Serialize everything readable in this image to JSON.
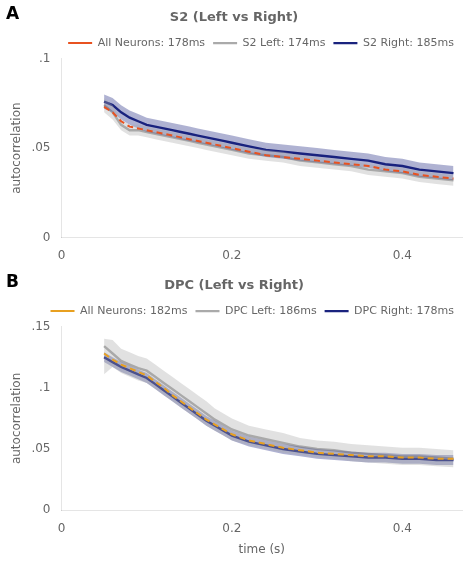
{
  "chart_data": [
    {
      "type": "line",
      "title": "S2 (Left vs Right)",
      "annotations": [
        {
          "text": "A"
        }
      ],
      "y_label": "autocorrelation",
      "xlim": [
        0,
        0.47
      ],
      "xticks": [
        0,
        {
          "value": 0.1,
          "label": ""
        },
        {
          "value": 0.2,
          "label": "0.2"
        },
        {
          "value": 0.3,
          "label": ""
        },
        {
          "value": 0.4,
          "label": "0.4"
        }
      ],
      "ylim": [
        0,
        0.1
      ],
      "yticks": [
        0,
        {
          "value": 0.05,
          "label": ".05"
        },
        {
          "value": 0.1,
          "label": ".1"
        }
      ],
      "grid": false,
      "legend": "upper right",
      "x": [
        0.05,
        0.06,
        0.07,
        0.08,
        0.09,
        0.1,
        0.11,
        0.12,
        0.13,
        0.14,
        0.15,
        0.16,
        0.17,
        0.18,
        0.19,
        0.2,
        0.22,
        0.24,
        0.26,
        0.28,
        0.3,
        0.32,
        0.34,
        0.36,
        0.38,
        0.4,
        0.42,
        0.44,
        0.46
      ],
      "series": [
        {
          "name": "All Neurons: 178ms",
          "color": "#E85220",
          "line_style": "dashed",
          "values": [
            0.073,
            0.07,
            0.065,
            0.062,
            0.061,
            0.06,
            0.059,
            0.058,
            0.057,
            0.056,
            0.055,
            0.054,
            0.053,
            0.052,
            0.051,
            0.05,
            0.048,
            0.046,
            0.045,
            0.044,
            0.043,
            0.042,
            0.041,
            0.04,
            0.038,
            0.037,
            0.035,
            0.034,
            0.033
          ]
        },
        {
          "name": "S2 Left: 174ms",
          "color": "#AAAAAA",
          "line_style": "solid",
          "values": [
            0.074,
            0.07,
            0.063,
            0.06,
            0.06,
            0.059,
            0.058,
            0.057,
            0.056,
            0.055,
            0.054,
            0.053,
            0.052,
            0.051,
            0.05,
            0.049,
            0.047,
            0.046,
            0.045,
            0.043,
            0.042,
            0.041,
            0.04,
            0.038,
            0.037,
            0.036,
            0.034,
            0.033,
            0.032
          ],
          "lo": [
            0.07,
            0.066,
            0.06,
            0.057,
            0.057,
            0.056,
            0.055,
            0.054,
            0.053,
            0.052,
            0.051,
            0.05,
            0.049,
            0.048,
            0.047,
            0.046,
            0.044,
            0.043,
            0.042,
            0.04,
            0.039,
            0.038,
            0.037,
            0.035,
            0.034,
            0.033,
            0.031,
            0.03,
            0.029
          ],
          "hi": [
            0.078,
            0.074,
            0.066,
            0.063,
            0.063,
            0.062,
            0.061,
            0.06,
            0.059,
            0.058,
            0.057,
            0.056,
            0.055,
            0.054,
            0.053,
            0.052,
            0.05,
            0.049,
            0.048,
            0.046,
            0.045,
            0.044,
            0.043,
            0.041,
            0.04,
            0.039,
            0.037,
            0.036,
            0.035
          ]
        },
        {
          "name": "S2 Right: 185ms",
          "color": "#1A237E",
          "line_style": "solid",
          "values": [
            0.076,
            0.074,
            0.07,
            0.067,
            0.065,
            0.063,
            0.062,
            0.061,
            0.06,
            0.059,
            0.058,
            0.057,
            0.056,
            0.055,
            0.054,
            0.053,
            0.051,
            0.049,
            0.048,
            0.047,
            0.046,
            0.045,
            0.044,
            0.043,
            0.041,
            0.04,
            0.038,
            0.037,
            0.036
          ],
          "lo": [
            0.072,
            0.07,
            0.066,
            0.063,
            0.061,
            0.059,
            0.058,
            0.057,
            0.056,
            0.055,
            0.054,
            0.053,
            0.052,
            0.051,
            0.05,
            0.049,
            0.047,
            0.045,
            0.044,
            0.043,
            0.042,
            0.041,
            0.04,
            0.039,
            0.037,
            0.036,
            0.034,
            0.033,
            0.032
          ],
          "hi": [
            0.08,
            0.078,
            0.074,
            0.071,
            0.069,
            0.067,
            0.066,
            0.065,
            0.064,
            0.063,
            0.062,
            0.061,
            0.06,
            0.059,
            0.058,
            0.057,
            0.055,
            0.053,
            0.052,
            0.051,
            0.05,
            0.049,
            0.048,
            0.047,
            0.045,
            0.044,
            0.042,
            0.041,
            0.04
          ]
        }
      ]
    },
    {
      "type": "line",
      "title": "DPC (Left vs Right)",
      "annotations": [
        {
          "text": "B"
        }
      ],
      "x_label": "time (s)",
      "y_label": "autocorrelation",
      "xlim": [
        0,
        0.47
      ],
      "xticks": [
        0,
        {
          "value": 0.1,
          "label": ""
        },
        {
          "value": 0.2,
          "label": "0.2"
        },
        {
          "value": 0.3,
          "label": ""
        },
        {
          "value": 0.4,
          "label": "0.4"
        }
      ],
      "ylim": [
        0,
        0.15
      ],
      "yticks": [
        0,
        {
          "value": 0.05,
          "label": ".05"
        },
        {
          "value": 0.1,
          "label": ".1"
        },
        {
          "value": 0.15,
          "label": ".15"
        }
      ],
      "grid": false,
      "legend": "upper right",
      "x": [
        0.05,
        0.06,
        0.07,
        0.08,
        0.09,
        0.1,
        0.11,
        0.12,
        0.13,
        0.14,
        0.15,
        0.16,
        0.17,
        0.18,
        0.19,
        0.2,
        0.22,
        0.24,
        0.26,
        0.28,
        0.3,
        0.32,
        0.34,
        0.36,
        0.38,
        0.4,
        0.42,
        0.44,
        0.46
      ],
      "series": [
        {
          "name": "All Neurons: 182ms",
          "color": "#E8A020",
          "line_style": "dashed",
          "values": [
            0.128,
            0.123,
            0.119,
            0.116,
            0.113,
            0.11,
            0.105,
            0.1,
            0.094,
            0.089,
            0.084,
            0.079,
            0.074,
            0.07,
            0.066,
            0.062,
            0.057,
            0.054,
            0.051,
            0.049,
            0.047,
            0.046,
            0.045,
            0.044,
            0.044,
            0.043,
            0.043,
            0.042,
            0.042
          ]
        },
        {
          "name": "DPC Left: 186ms",
          "color": "#AAAAAA",
          "line_style": "solid",
          "values": [
            0.134,
            0.128,
            0.122,
            0.119,
            0.116,
            0.114,
            0.109,
            0.104,
            0.099,
            0.094,
            0.089,
            0.084,
            0.079,
            0.074,
            0.07,
            0.066,
            0.061,
            0.058,
            0.055,
            0.052,
            0.05,
            0.049,
            0.047,
            0.046,
            0.045,
            0.044,
            0.044,
            0.043,
            0.042
          ],
          "lo": [
            0.111,
            0.117,
            0.112,
            0.109,
            0.106,
            0.104,
            0.099,
            0.094,
            0.089,
            0.084,
            0.079,
            0.074,
            0.069,
            0.065,
            0.061,
            0.057,
            0.053,
            0.05,
            0.047,
            0.045,
            0.043,
            0.042,
            0.04,
            0.039,
            0.038,
            0.037,
            0.037,
            0.036,
            0.035
          ],
          "hi": [
            0.14,
            0.139,
            0.132,
            0.129,
            0.126,
            0.124,
            0.119,
            0.114,
            0.109,
            0.104,
            0.099,
            0.094,
            0.089,
            0.083,
            0.079,
            0.075,
            0.069,
            0.066,
            0.063,
            0.059,
            0.057,
            0.056,
            0.054,
            0.053,
            0.052,
            0.051,
            0.051,
            0.05,
            0.049
          ]
        },
        {
          "name": "DPC Right: 178ms",
          "color": "#1A237E",
          "line_style": "solid",
          "values": [
            0.125,
            0.121,
            0.117,
            0.114,
            0.111,
            0.108,
            0.103,
            0.098,
            0.093,
            0.088,
            0.083,
            0.078,
            0.073,
            0.069,
            0.065,
            0.061,
            0.056,
            0.053,
            0.05,
            0.048,
            0.046,
            0.045,
            0.044,
            0.043,
            0.043,
            0.042,
            0.042,
            0.041,
            0.041
          ],
          "lo": [
            0.121,
            0.117,
            0.113,
            0.11,
            0.107,
            0.104,
            0.099,
            0.094,
            0.089,
            0.084,
            0.079,
            0.074,
            0.069,
            0.065,
            0.061,
            0.057,
            0.052,
            0.049,
            0.046,
            0.044,
            0.042,
            0.041,
            0.04,
            0.039,
            0.039,
            0.038,
            0.038,
            0.037,
            0.037
          ],
          "hi": [
            0.129,
            0.125,
            0.121,
            0.118,
            0.115,
            0.112,
            0.107,
            0.102,
            0.097,
            0.092,
            0.087,
            0.082,
            0.077,
            0.073,
            0.069,
            0.065,
            0.06,
            0.057,
            0.054,
            0.052,
            0.05,
            0.049,
            0.048,
            0.047,
            0.047,
            0.046,
            0.046,
            0.045,
            0.045
          ]
        }
      ]
    }
  ]
}
